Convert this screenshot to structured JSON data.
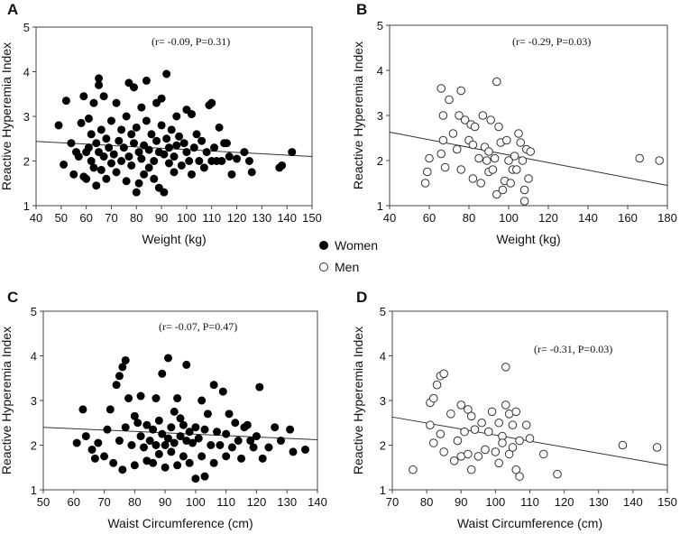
{
  "legend": {
    "women_label": "Women",
    "men_label": "Men"
  },
  "chart_data": [
    {
      "type": "scatter",
      "panel": "A",
      "group": "women",
      "marker": "filled",
      "annotation": "(r= -0.09, P=0.31)",
      "xlabel": "Weight (kg)",
      "ylabel": "Reactive  Hyperemia  Index",
      "xlim": [
        40,
        150
      ],
      "ylim": [
        1,
        5
      ],
      "xticks": [
        40,
        50,
        60,
        70,
        80,
        90,
        100,
        110,
        120,
        130,
        140,
        150
      ],
      "yticks": [
        1,
        2,
        3,
        4,
        5
      ],
      "fit_line": {
        "x": [
          40,
          150
        ],
        "y": [
          2.44,
          2.1
        ]
      },
      "points": [
        [
          49,
          2.8
        ],
        [
          51,
          1.92
        ],
        [
          52,
          3.35
        ],
        [
          54,
          2.4
        ],
        [
          55,
          1.7
        ],
        [
          56,
          2.2
        ],
        [
          57,
          2.1
        ],
        [
          58,
          2.85
        ],
        [
          59,
          1.65
        ],
        [
          59,
          3.45
        ],
        [
          60,
          2.2
        ],
        [
          60,
          1.6
        ],
        [
          61,
          2.95
        ],
        [
          61,
          2.3
        ],
        [
          62,
          2.0
        ],
        [
          62,
          2.6
        ],
        [
          63,
          1.85
        ],
        [
          63,
          3.3
        ],
        [
          64,
          2.4
        ],
        [
          64,
          1.45
        ],
        [
          65,
          3.85
        ],
        [
          65,
          3.7
        ],
        [
          65,
          2.2
        ],
        [
          66,
          1.8
        ],
        [
          66,
          2.7
        ],
        [
          67,
          3.45
        ],
        [
          67,
          2.1
        ],
        [
          68,
          2.5
        ],
        [
          68,
          1.6
        ],
        [
          69,
          2.3
        ],
        [
          70,
          1.95
        ],
        [
          70,
          2.9
        ],
        [
          71,
          2.15
        ],
        [
          72,
          3.3
        ],
        [
          72,
          1.75
        ],
        [
          73,
          2.45
        ],
        [
          74,
          2.0
        ],
        [
          74,
          2.7
        ],
        [
          75,
          2.3
        ],
        [
          76,
          3.0
        ],
        [
          76,
          1.55
        ],
        [
          77,
          3.75
        ],
        [
          77,
          2.1
        ],
        [
          78,
          2.6
        ],
        [
          78,
          1.9
        ],
        [
          79,
          3.65
        ],
        [
          79,
          2.4
        ],
        [
          80,
          1.3
        ],
        [
          80,
          2.75
        ],
        [
          81,
          2.2
        ],
        [
          81,
          1.5
        ],
        [
          82,
          3.2
        ],
        [
          82,
          2.05
        ],
        [
          83,
          2.35
        ],
        [
          83,
          1.7
        ],
        [
          84,
          3.8
        ],
        [
          84,
          2.9
        ],
        [
          85,
          2.25
        ],
        [
          85,
          1.85
        ],
        [
          86,
          2.6
        ],
        [
          87,
          2.0
        ],
        [
          87,
          1.6
        ],
        [
          88,
          3.3
        ],
        [
          88,
          2.45
        ],
        [
          89,
          2.2
        ],
        [
          89,
          1.4
        ],
        [
          90,
          3.4
        ],
        [
          90,
          2.8
        ],
        [
          91,
          1.3
        ],
        [
          91,
          2.15
        ],
        [
          92,
          2.5
        ],
        [
          92,
          3.95
        ],
        [
          93,
          1.95
        ],
        [
          93,
          2.3
        ],
        [
          94,
          2.7
        ],
        [
          95,
          1.75
        ],
        [
          95,
          2.1
        ],
        [
          96,
          2.35
        ],
        [
          96,
          3.0
        ],
        [
          97,
          2.55
        ],
        [
          98,
          1.9
        ],
        [
          99,
          2.4
        ],
        [
          100,
          3.15
        ],
        [
          100,
          2.2
        ],
        [
          101,
          2.0
        ],
        [
          102,
          3.05
        ],
        [
          102,
          1.7
        ],
        [
          103,
          2.3
        ],
        [
          104,
          2.6
        ],
        [
          105,
          2.0
        ],
        [
          106,
          2.45
        ],
        [
          107,
          1.85
        ],
        [
          108,
          2.2
        ],
        [
          109,
          3.25
        ],
        [
          110,
          3.3
        ],
        [
          110,
          2.0
        ],
        [
          111,
          2.3
        ],
        [
          112,
          2.0
        ],
        [
          113,
          2.75
        ],
        [
          114,
          2.0
        ],
        [
          115,
          2.4
        ],
        [
          116,
          2.4
        ],
        [
          117,
          2.1
        ],
        [
          118,
          1.7
        ],
        [
          120,
          2.05
        ],
        [
          123,
          2.2
        ],
        [
          125,
          2.0
        ],
        [
          126,
          1.75
        ],
        [
          137,
          1.85
        ],
        [
          138,
          1.9
        ],
        [
          142,
          2.2
        ]
      ]
    },
    {
      "type": "scatter",
      "panel": "B",
      "group": "men",
      "marker": "open",
      "annotation": "(r= -0.29, P=0.03)",
      "xlabel": "Weight (kg)",
      "ylabel": "Reactive  Hyperemia  Index",
      "xlim": [
        40,
        180
      ],
      "ylim": [
        1,
        5
      ],
      "xticks": [
        40,
        60,
        80,
        100,
        120,
        140,
        160,
        180
      ],
      "yticks": [
        1,
        2,
        3,
        4,
        5
      ],
      "fit_line": {
        "x": [
          40,
          180
        ],
        "y": [
          2.63,
          1.45
        ]
      },
      "points": [
        [
          58,
          1.5
        ],
        [
          59,
          1.75
        ],
        [
          60,
          2.05
        ],
        [
          66,
          3.6
        ],
        [
          66,
          2.15
        ],
        [
          67,
          2.45
        ],
        [
          67,
          3.0
        ],
        [
          68,
          1.85
        ],
        [
          70,
          3.35
        ],
        [
          72,
          2.6
        ],
        [
          74,
          2.25
        ],
        [
          75,
          3.0
        ],
        [
          76,
          3.55
        ],
        [
          76,
          1.8
        ],
        [
          78,
          2.9
        ],
        [
          80,
          2.45
        ],
        [
          81,
          2.8
        ],
        [
          82,
          2.35
        ],
        [
          82,
          1.6
        ],
        [
          83,
          2.75
        ],
        [
          85,
          2.05
        ],
        [
          86,
          1.5
        ],
        [
          87,
          3.0
        ],
        [
          88,
          2.3
        ],
        [
          89,
          2.0
        ],
        [
          90,
          1.75
        ],
        [
          90,
          2.2
        ],
        [
          91,
          2.9
        ],
        [
          92,
          1.8
        ],
        [
          93,
          2.05
        ],
        [
          94,
          3.75
        ],
        [
          94,
          1.25
        ],
        [
          95,
          2.75
        ],
        [
          96,
          2.4
        ],
        [
          97,
          1.35
        ],
        [
          98,
          1.55
        ],
        [
          99,
          2.45
        ],
        [
          100,
          2.0
        ],
        [
          101,
          1.5
        ],
        [
          102,
          1.8
        ],
        [
          103,
          2.1
        ],
        [
          104,
          1.8
        ],
        [
          105,
          2.6
        ],
        [
          106,
          2.4
        ],
        [
          107,
          2.0
        ],
        [
          108,
          1.35
        ],
        [
          108,
          1.1
        ],
        [
          109,
          2.25
        ],
        [
          110,
          1.6
        ],
        [
          111,
          2.2
        ],
        [
          166,
          2.05
        ],
        [
          176,
          2.0
        ]
      ]
    },
    {
      "type": "scatter",
      "panel": "C",
      "group": "women",
      "marker": "filled",
      "annotation": "(r= -0.07, P=0.47)",
      "xlabel": "Waist Circumference  (cm)",
      "ylabel": "Reactive  Hyperemia  Index",
      "xlim": [
        50,
        140
      ],
      "ylim": [
        1,
        5
      ],
      "xticks": [
        50,
        60,
        70,
        80,
        90,
        100,
        110,
        120,
        130,
        140
      ],
      "yticks": [
        1,
        2,
        3,
        4,
        5
      ],
      "fit_line": {
        "x": [
          50,
          140
        ],
        "y": [
          2.4,
          2.12
        ]
      },
      "points": [
        [
          61,
          2.05
        ],
        [
          63,
          2.8
        ],
        [
          64,
          2.2
        ],
        [
          66,
          1.9
        ],
        [
          67,
          1.7
        ],
        [
          68,
          2.05
        ],
        [
          70,
          1.75
        ],
        [
          71,
          2.35
        ],
        [
          72,
          2.8
        ],
        [
          73,
          1.6
        ],
        [
          74,
          3.35
        ],
        [
          75,
          2.1
        ],
        [
          75,
          3.55
        ],
        [
          76,
          3.75
        ],
        [
          76,
          1.45
        ],
        [
          77,
          3.9
        ],
        [
          77,
          2.4
        ],
        [
          78,
          3.05
        ],
        [
          79,
          2.0
        ],
        [
          80,
          2.65
        ],
        [
          80,
          1.55
        ],
        [
          81,
          2.5
        ],
        [
          82,
          3.1
        ],
        [
          82,
          2.2
        ],
        [
          83,
          1.95
        ],
        [
          84,
          2.45
        ],
        [
          84,
          1.65
        ],
        [
          85,
          2.1
        ],
        [
          86,
          2.35
        ],
        [
          86,
          1.6
        ],
        [
          87,
          3.05
        ],
        [
          87,
          2.0
        ],
        [
          88,
          2.55
        ],
        [
          88,
          1.8
        ],
        [
          89,
          2.25
        ],
        [
          89,
          3.6
        ],
        [
          90,
          2.0
        ],
        [
          90,
          1.5
        ],
        [
          91,
          2.15
        ],
        [
          91,
          3.95
        ],
        [
          92,
          2.4
        ],
        [
          92,
          1.85
        ],
        [
          93,
          2.05
        ],
        [
          93,
          2.75
        ],
        [
          94,
          3.05
        ],
        [
          94,
          1.55
        ],
        [
          95,
          2.2
        ],
        [
          95,
          2.6
        ],
        [
          96,
          1.75
        ],
        [
          96,
          2.45
        ],
        [
          97,
          3.8
        ],
        [
          97,
          2.1
        ],
        [
          98,
          2.3
        ],
        [
          98,
          1.6
        ],
        [
          99,
          2.05
        ],
        [
          100,
          2.4
        ],
        [
          100,
          1.25
        ],
        [
          101,
          2.15
        ],
        [
          102,
          1.75
        ],
        [
          102,
          3.0
        ],
        [
          103,
          2.35
        ],
        [
          103,
          1.3
        ],
        [
          104,
          2.7
        ],
        [
          105,
          2.0
        ],
        [
          106,
          3.35
        ],
        [
          106,
          1.6
        ],
        [
          107,
          2.3
        ],
        [
          108,
          2.0
        ],
        [
          109,
          3.2
        ],
        [
          110,
          2.25
        ],
        [
          110,
          1.75
        ],
        [
          111,
          2.7
        ],
        [
          112,
          1.95
        ],
        [
          113,
          2.5
        ],
        [
          114,
          2.1
        ],
        [
          115,
          1.7
        ],
        [
          116,
          2.4
        ],
        [
          117,
          2.45
        ],
        [
          118,
          2.1
        ],
        [
          119,
          1.95
        ],
        [
          120,
          2.2
        ],
        [
          121,
          3.3
        ],
        [
          122,
          1.7
        ],
        [
          124,
          1.95
        ],
        [
          126,
          2.4
        ],
        [
          128,
          2.1
        ],
        [
          131,
          2.35
        ],
        [
          132,
          1.85
        ],
        [
          136,
          1.9
        ]
      ]
    },
    {
      "type": "scatter",
      "panel": "D",
      "group": "men",
      "marker": "open",
      "annotation": "(r= -0.31, P=0.03)",
      "xlabel": "Waist Circumference  (cm)",
      "ylabel": "Reactive  Hyperemia  Index",
      "xlim": [
        70,
        150
      ],
      "ylim": [
        1,
        5
      ],
      "xticks": [
        70,
        80,
        90,
        100,
        110,
        120,
        130,
        140,
        150
      ],
      "yticks": [
        1,
        2,
        3,
        4,
        5
      ],
      "fit_line": {
        "x": [
          70,
          150
        ],
        "y": [
          2.63,
          1.55
        ]
      },
      "points": [
        [
          76,
          1.45
        ],
        [
          81,
          2.95
        ],
        [
          81,
          2.45
        ],
        [
          82,
          3.05
        ],
        [
          82,
          2.05
        ],
        [
          83,
          3.35
        ],
        [
          84,
          3.55
        ],
        [
          84,
          2.25
        ],
        [
          85,
          3.6
        ],
        [
          85,
          1.85
        ],
        [
          87,
          2.7
        ],
        [
          88,
          1.65
        ],
        [
          89,
          2.1
        ],
        [
          90,
          2.9
        ],
        [
          90,
          1.75
        ],
        [
          91,
          2.3
        ],
        [
          92,
          2.8
        ],
        [
          92,
          1.8
        ],
        [
          93,
          1.45
        ],
        [
          93,
          2.65
        ],
        [
          94,
          2.35
        ],
        [
          95,
          1.75
        ],
        [
          96,
          2.5
        ],
        [
          97,
          1.9
        ],
        [
          98,
          2.3
        ],
        [
          99,
          2.75
        ],
        [
          100,
          1.85
        ],
        [
          101,
          2.5
        ],
        [
          101,
          1.6
        ],
        [
          102,
          2.2
        ],
        [
          102,
          2.05
        ],
        [
          103,
          3.75
        ],
        [
          103,
          2.9
        ],
        [
          104,
          2.7
        ],
        [
          104,
          1.8
        ],
        [
          105,
          2.45
        ],
        [
          105,
          1.95
        ],
        [
          106,
          1.45
        ],
        [
          106,
          2.75
        ],
        [
          107,
          1.3
        ],
        [
          107,
          2.1
        ],
        [
          109,
          2.45
        ],
        [
          110,
          2.15
        ],
        [
          114,
          1.8
        ],
        [
          118,
          1.35
        ],
        [
          137,
          2.0
        ],
        [
          147,
          1.95
        ]
      ]
    }
  ]
}
